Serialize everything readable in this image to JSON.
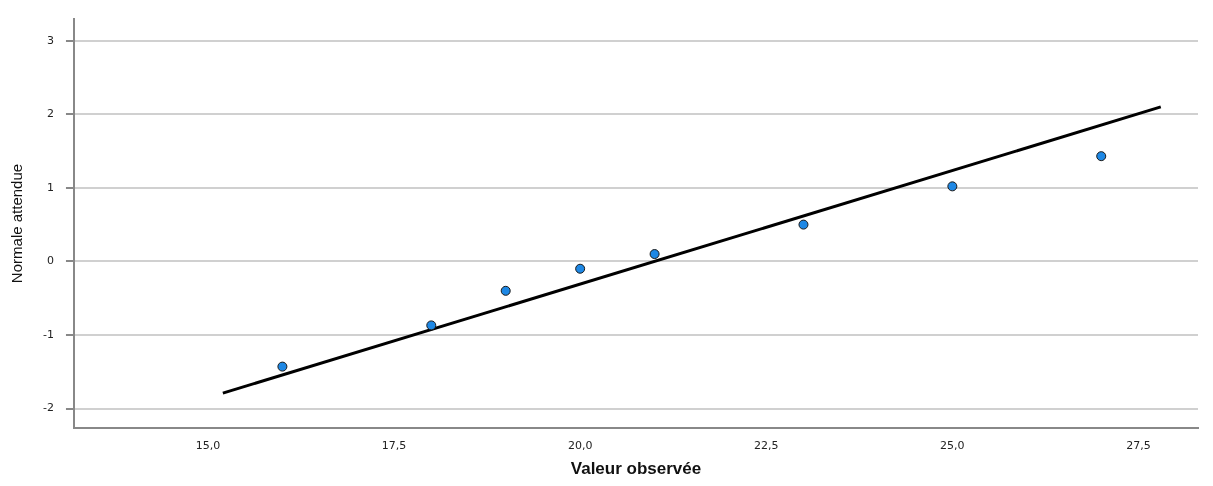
{
  "chart_data": {
    "type": "scatter",
    "xlabel": "Valeur observée",
    "ylabel": "Normale attendue",
    "xlim": [
      13.2,
      28.3
    ],
    "ylim": [
      -2.27,
      3.3
    ],
    "xticks": [
      {
        "value": 15,
        "label": "15,0"
      },
      {
        "value": 17.5,
        "label": "17,5"
      },
      {
        "value": 20,
        "label": "20,0"
      },
      {
        "value": 22.5,
        "label": "22,5"
      },
      {
        "value": 25,
        "label": "25,0"
      },
      {
        "value": 27.5,
        "label": "27,5"
      }
    ],
    "yticks": [
      -2,
      -1,
      0,
      1,
      2,
      3
    ],
    "grid": "y",
    "legend": false,
    "series": [
      {
        "color": "#1e88e5",
        "marker": "circle",
        "x": [
          16,
          18,
          19,
          20,
          21,
          23,
          25,
          27
        ],
        "values": [
          -1.43,
          -0.87,
          -0.4,
          -0.1,
          0.1,
          0.5,
          1.02,
          1.43
        ]
      },
      {
        "type": "line",
        "marker": "none",
        "color": "#000000",
        "x": [
          15.2,
          27.8
        ],
        "values": [
          -1.79,
          2.1
        ]
      }
    ]
  }
}
